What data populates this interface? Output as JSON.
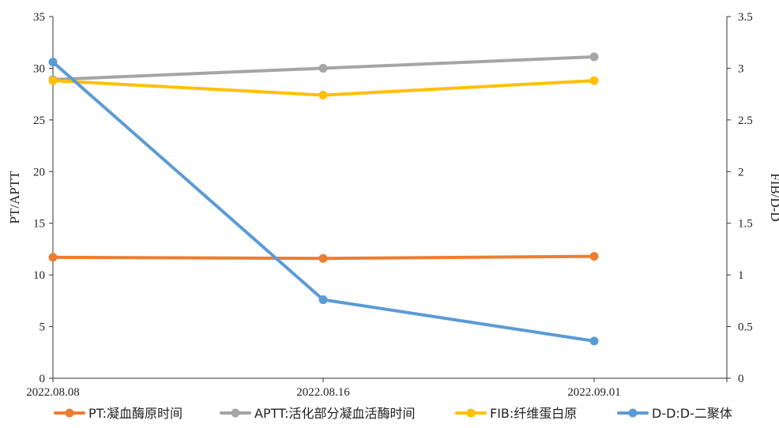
{
  "chart_data": {
    "type": "line",
    "categories": [
      "2022.08.08",
      "2022.08.16",
      "2022.09.01"
    ],
    "y_left": {
      "label": "PT/APTT",
      "range": [
        0,
        35
      ],
      "ticks": [
        "0",
        "5",
        "10",
        "15",
        "20",
        "25",
        "30",
        "35"
      ]
    },
    "y_right": {
      "label": "FIB/D-D",
      "range": [
        0,
        3.5
      ],
      "ticks": [
        "0",
        "0.5",
        "1",
        "1.5",
        "2",
        "2.5",
        "3",
        "3.5"
      ]
    },
    "legend_position": "bottom",
    "grid": false,
    "series": [
      {
        "name": "PT:凝血酶原时间",
        "axis": "left",
        "color": "#ED7D31",
        "values": [
          11.7,
          11.6,
          11.8
        ]
      },
      {
        "name": "APTT:活化部分凝血活酶时间",
        "axis": "left",
        "color": "#A5A5A5",
        "values": [
          28.9,
          30.0,
          31.1
        ]
      },
      {
        "name": "FIB:纤维蛋白原",
        "axis": "right",
        "color": "#FFC000",
        "values": [
          2.88,
          2.74,
          2.88
        ]
      },
      {
        "name": "D-D:D-二聚体",
        "axis": "right",
        "color": "#5B9BD5",
        "values": [
          3.06,
          0.76,
          0.36
        ]
      }
    ]
  }
}
